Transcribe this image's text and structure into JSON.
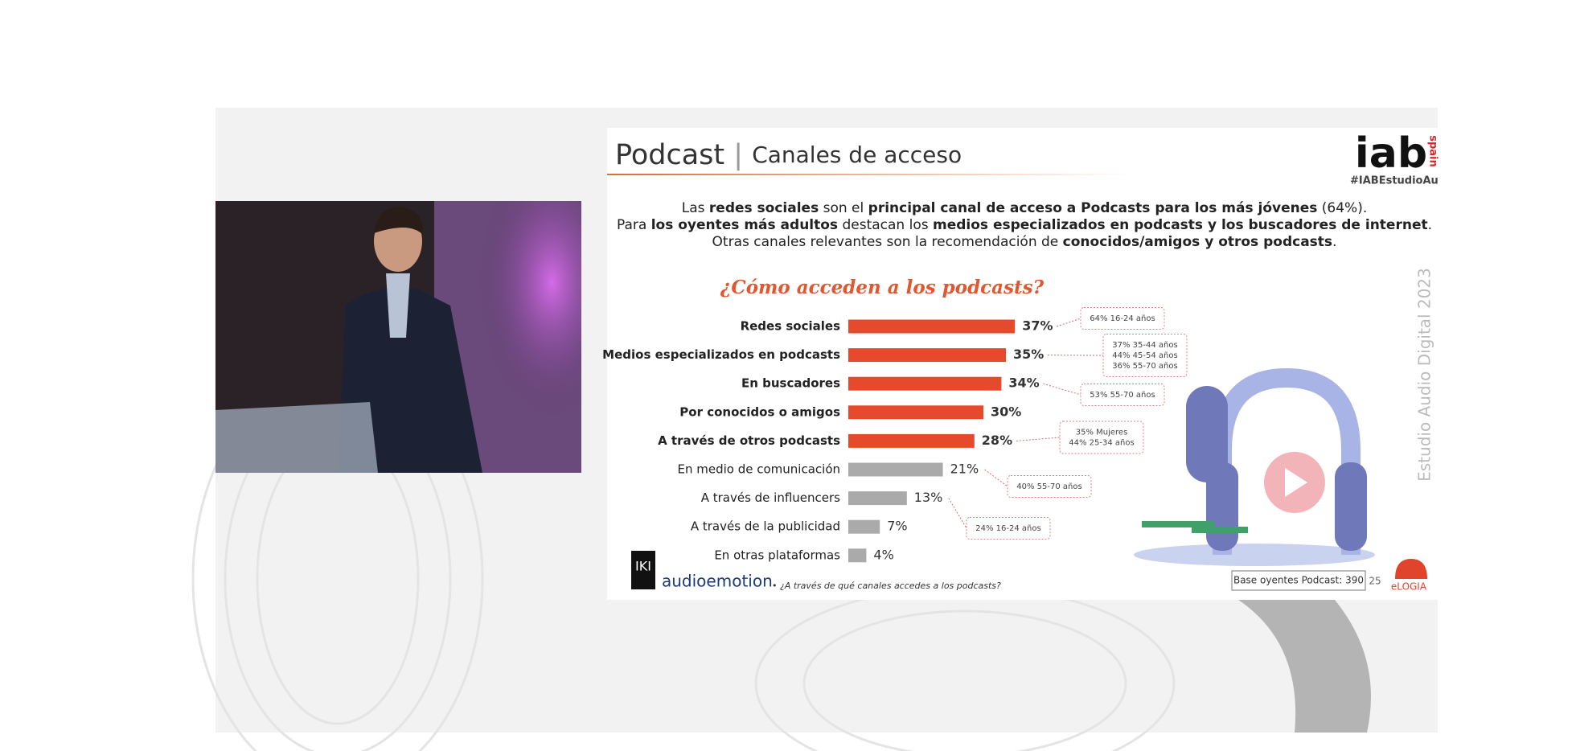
{
  "slide": {
    "title": "Podcast",
    "subtitle": "Canales de acceso",
    "hashtag": "#IABEstudioAudio",
    "logo": "iab",
    "logo_sub": "spain",
    "side_text": "Estudio Audio Digital 2023",
    "headline": [
      [
        {
          "text": "Las ",
          "bold": false
        },
        {
          "text": "redes sociales",
          "bold": true
        },
        {
          "text": " son el ",
          "bold": false
        },
        {
          "text": "principal canal de acceso a Podcasts para los más jóvenes",
          "bold": true
        },
        {
          "text": " (64%).",
          "bold": false
        }
      ],
      [
        {
          "text": "Para ",
          "bold": false
        },
        {
          "text": "los oyentes más adultos",
          "bold": true
        },
        {
          "text": " destacan los ",
          "bold": false
        },
        {
          "text": "medios especializados en podcasts y los buscadores de internet",
          "bold": true
        },
        {
          "text": ".",
          "bold": false
        }
      ],
      [
        {
          "text": "Otras canales relevantes son la recomendación de ",
          "bold": false
        },
        {
          "text": "conocidos/amigos y otros podcasts",
          "bold": true
        },
        {
          "text": ".",
          "bold": false
        }
      ]
    ],
    "footer_brand": "audioemotion",
    "footer_group": "IKI",
    "footer_question": "• ¿A través de qué canales accedes a los podcasts?",
    "base": "Base oyentes Podcast: 390",
    "page": "25",
    "partner": "eLOGIA"
  },
  "chart_data": {
    "type": "bar",
    "orientation": "horizontal",
    "title": "¿Cómo acceden a los podcasts?",
    "categories": [
      "Redes sociales",
      "Medios especializados en podcasts",
      "En buscadores",
      "Por conocidos o amigos",
      "A través de otros podcasts",
      "En medio de comunicación",
      "A través de influencers",
      "A través de la publicidad",
      "En otras plataformas"
    ],
    "values": [
      37,
      35,
      34,
      30,
      28,
      21,
      13,
      7,
      4
    ],
    "value_labels": [
      "37%",
      "35%",
      "34%",
      "30%",
      "28%",
      "21%",
      "13%",
      "7%",
      "4%"
    ],
    "colors": [
      "#e54a2c",
      "#e54a2c",
      "#e54a2c",
      "#e54a2c",
      "#e54a2c",
      "#aaaaaa",
      "#aaaaaa",
      "#aaaaaa",
      "#aaaaaa"
    ],
    "emphasis": [
      true,
      true,
      true,
      true,
      true,
      false,
      false,
      false,
      false
    ],
    "annotations": [
      {
        "bar": 0,
        "lines": [
          "64% 16-24 años"
        ]
      },
      {
        "bar": 1,
        "lines": [
          "37% 35-44 años",
          "44% 45-54 años",
          "36% 55-70 años"
        ]
      },
      {
        "bar": 2,
        "lines": [
          "53% 55-70 años"
        ]
      },
      {
        "bar": 4,
        "lines": [
          "35% Mujeres",
          "44% 25-34 años"
        ]
      },
      {
        "bar": 5,
        "lines": [
          "40% 55-70 años"
        ]
      },
      {
        "bar": 6,
        "lines": [
          "24% 16-24 años"
        ]
      }
    ]
  }
}
